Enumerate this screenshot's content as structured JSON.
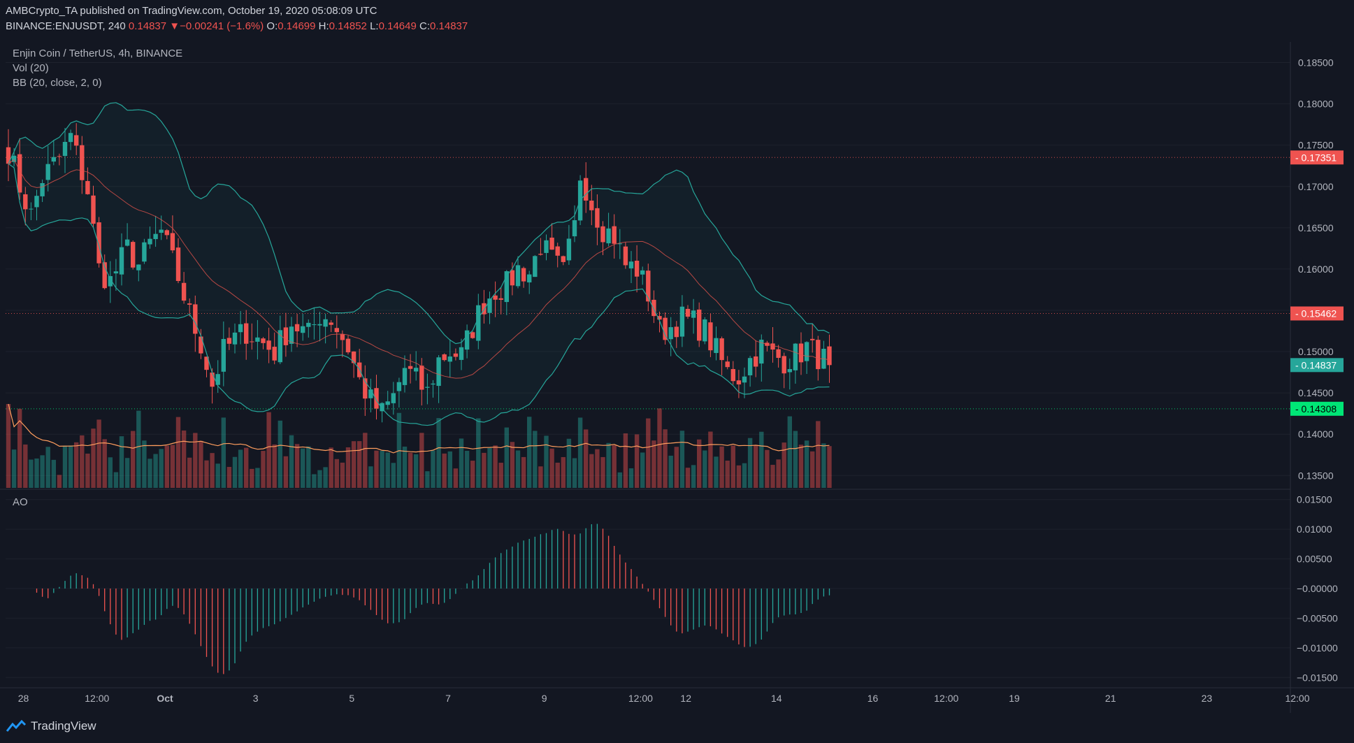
{
  "header": {
    "publisher": "AMBCrypto_TA published on TradingView.com, October 19, 2020 05:08:09 UTC",
    "symbol": "BINANCE:ENJUSDT, 240",
    "last": "0.14837",
    "change_arrow": "▼",
    "change": "−0.00241 (−1.6%)",
    "o_label": "O:",
    "o_value": "0.14699",
    "h_label": "H:",
    "h_value": "0.14852",
    "l_label": "L:",
    "l_value": "0.14649",
    "c_label": "C:",
    "c_value": "0.14837"
  },
  "legend": {
    "title": "Enjin Coin / TetherUS, 4h, BINANCE",
    "vol": "Vol (20)",
    "bb": "BB (20, close, 2, 0)",
    "ao": "AO"
  },
  "brand": {
    "name": "TradingView"
  },
  "colors": {
    "background": "#131722",
    "up": "#26a69a",
    "down": "#ef5350",
    "bb_band": "#26a69a",
    "bb_basis": "#e0534b",
    "vol_ma": "#ff9e5e",
    "ao_up": "#26a69a",
    "ao_down": "#ef5350",
    "support": "#00e676"
  },
  "chart_data": [
    {
      "type": "candlestick",
      "title": "Enjin Coin / TetherUS, 4h, BINANCE",
      "ylim": [
        0.1335,
        0.1875
      ],
      "y_ticks": [
        "0.18500",
        "0.18000",
        "0.17500",
        "0.17000",
        "0.16500",
        "0.16000",
        "0.15500",
        "0.15000",
        "0.14500",
        "0.14000",
        "0.13500"
      ],
      "x_ticks": [
        "28",
        "12:00",
        "Oct",
        "3",
        "5",
        "7",
        "9",
        "12:00",
        "12",
        "14",
        "16",
        "12:00",
        "19",
        "21",
        "23",
        "12:00"
      ],
      "price_levels": [
        {
          "value": 0.17351,
          "label": "0.17351",
          "style": "red-dotted"
        },
        {
          "value": 0.15462,
          "label": "0.15462",
          "style": "red-dotted"
        },
        {
          "value": 0.14837,
          "label": "0.14837",
          "style": "last-price"
        },
        {
          "value": 0.14308,
          "label": "0.14308",
          "style": "green-dotted"
        }
      ],
      "anchors": [
        [
          0,
          0.1745
        ],
        [
          2,
          0.17
        ],
        [
          4,
          0.1665
        ],
        [
          6,
          0.171
        ],
        [
          9,
          0.1735
        ],
        [
          11,
          0.176
        ],
        [
          14,
          0.1695
        ],
        [
          16,
          0.16
        ],
        [
          18,
          0.1585
        ],
        [
          21,
          0.1625
        ],
        [
          23,
          0.1605
        ],
        [
          25,
          0.163
        ],
        [
          27,
          0.1645
        ],
        [
          30,
          0.159
        ],
        [
          32,
          0.1545
        ],
        [
          34,
          0.151
        ],
        [
          36,
          0.146
        ],
        [
          38,
          0.15
        ],
        [
          40,
          0.1515
        ],
        [
          42,
          0.1525
        ],
        [
          44,
          0.1515
        ],
        [
          47,
          0.15
        ],
        [
          50,
          0.1535
        ],
        [
          53,
          0.152
        ],
        [
          55,
          0.1545
        ],
        [
          57,
          0.154
        ],
        [
          60,
          0.1505
        ],
        [
          62,
          0.1465
        ],
        [
          64,
          0.144
        ],
        [
          66,
          0.1425
        ],
        [
          68,
          0.1445
        ],
        [
          70,
          0.148
        ],
        [
          72,
          0.1465
        ],
        [
          74,
          0.145
        ],
        [
          76,
          0.149
        ],
        [
          78,
          0.15
        ],
        [
          80,
          0.1495
        ],
        [
          82,
          0.153
        ],
        [
          84,
          0.156
        ],
        [
          86,
          0.1575
        ],
        [
          88,
          0.158
        ],
        [
          90,
          0.16
        ],
        [
          92,
          0.1595
        ],
        [
          94,
          0.163
        ],
        [
          96,
          0.161
        ],
        [
          98,
          0.1595
        ],
        [
          100,
          0.165
        ],
        [
          101,
          0.1715
        ],
        [
          102,
          0.17
        ],
        [
          103,
          0.168
        ],
        [
          105,
          0.165
        ],
        [
          107,
          0.164
        ],
        [
          109,
          0.1605
        ],
        [
          111,
          0.16
        ],
        [
          113,
          0.157
        ],
        [
          115,
          0.1525
        ],
        [
          117,
          0.153
        ],
        [
          119,
          0.154
        ],
        [
          121,
          0.1535
        ],
        [
          123,
          0.1525
        ],
        [
          125,
          0.15
        ],
        [
          127,
          0.1475
        ],
        [
          129,
          0.147
        ],
        [
          131,
          0.149
        ],
        [
          133,
          0.1505
        ],
        [
          135,
          0.1495
        ],
        [
          137,
          0.149
        ],
        [
          139,
          0.1495
        ],
        [
          141,
          0.1505
        ],
        [
          143,
          0.1495
        ],
        [
          145,
          0.1485
        ]
      ],
      "bar_count": 146,
      "bar_spacing_hours": 4,
      "last_close": 0.14837
    },
    {
      "type": "bar",
      "title": "Vol (20)",
      "note": "volume histogram with 20-period moving average"
    },
    {
      "type": "bar",
      "title": "AO",
      "ylim": [
        -0.0165,
        0.0165
      ],
      "y_ticks": [
        "0.01500",
        "0.01000",
        "0.00500",
        "−0.00000",
        "−0.00500",
        "−0.01000",
        "−0.01500"
      ]
    }
  ]
}
